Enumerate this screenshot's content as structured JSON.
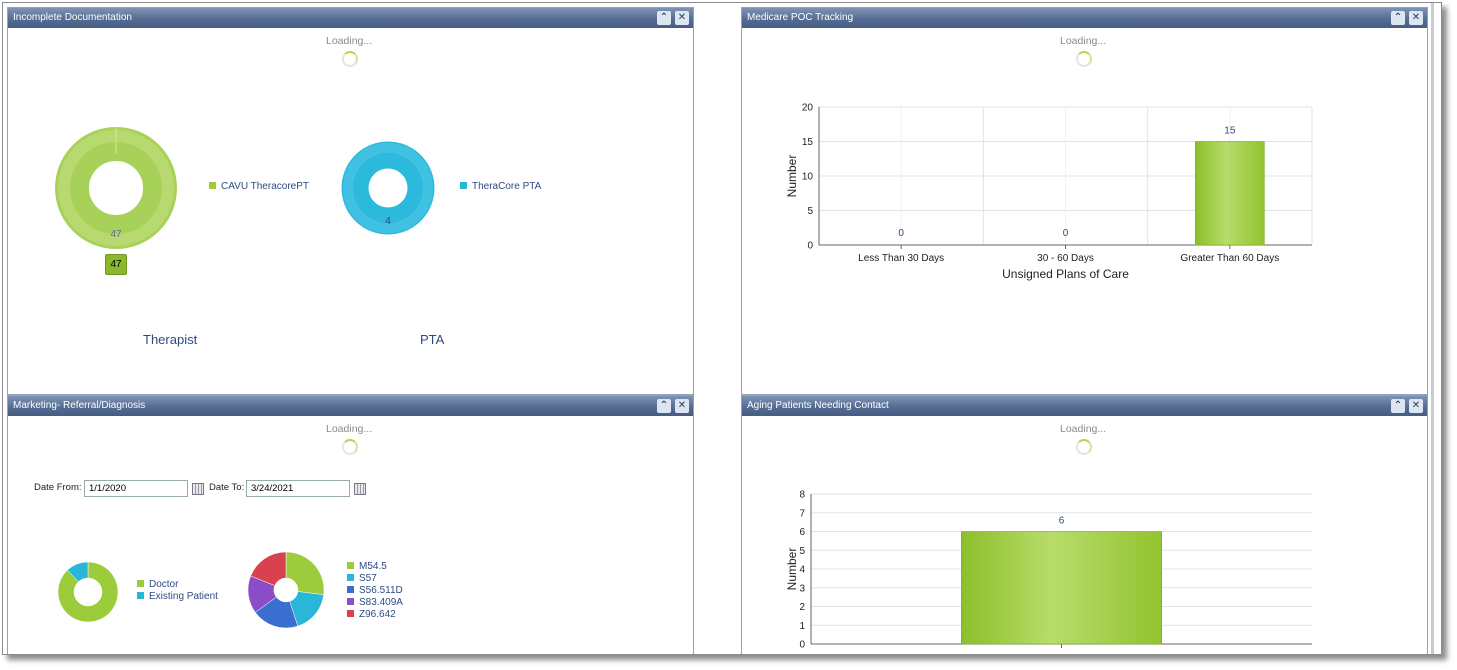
{
  "panels": {
    "incomplete": {
      "title": "Incomplete Documentation",
      "loading": "Loading...",
      "therapist": {
        "caption": "Therapist",
        "legend": "CAVU TheracorePT",
        "value": "47",
        "badge": "47",
        "color": "#9ccb3b"
      },
      "pta": {
        "caption": "PTA",
        "legend": "TheraCore PTA",
        "value": "4",
        "color": "#29b6d8"
      }
    },
    "medicare": {
      "title": "Medicare POC Tracking",
      "loading": "Loading..."
    },
    "marketing": {
      "title": "Marketing- Referral/Diagnosis",
      "loading": "Loading...",
      "date_from_label": "Date From:",
      "date_from_value": "1/1/2020",
      "date_to_label": "Date To:",
      "date_to_value": "3/24/2021",
      "referral_legend": [
        {
          "label": "Doctor",
          "color": "#9ccb3b"
        },
        {
          "label": "Existing Patient",
          "color": "#29b6d8"
        }
      ],
      "diagnosis_legend": [
        {
          "label": "M54.5",
          "color": "#9ccb3b"
        },
        {
          "label": "S57",
          "color": "#29b6d8"
        },
        {
          "label": "S56.511D",
          "color": "#3a6fd0"
        },
        {
          "label": "S83.409A",
          "color": "#8a4fc8"
        },
        {
          "label": "Z96.642",
          "color": "#d8414e"
        }
      ]
    },
    "aging": {
      "title": "Aging Patients Needing Contact",
      "loading": "Loading..."
    }
  },
  "chart_data": [
    {
      "type": "bar",
      "categories": [
        "Less Than 30 Days",
        "30 - 60 Days",
        "Greater Than 60 Days"
      ],
      "values": [
        0,
        0,
        15
      ],
      "xlabel": "Unsigned Plans of Care",
      "ylabel": "Number",
      "ylim": [
        0,
        20
      ],
      "yticks": [
        0,
        5,
        10,
        15,
        20
      ],
      "color": "#9ccb3b",
      "grid": true
    },
    {
      "type": "bar",
      "categories": [
        ""
      ],
      "values": [
        6
      ],
      "ylabel": "Number",
      "ylim": [
        0,
        8
      ],
      "yticks": [
        0,
        1,
        2,
        3,
        4,
        5,
        6,
        7,
        8
      ],
      "color": "#9ccb3b",
      "grid": true
    },
    {
      "type": "pie",
      "categories": [
        "CAVU TheracorePT"
      ],
      "values": [
        47
      ],
      "colors": [
        "#9ccb3b"
      ]
    },
    {
      "type": "pie",
      "categories": [
        "TheraCore PTA"
      ],
      "values": [
        4
      ],
      "colors": [
        "#29b6d8"
      ]
    },
    {
      "type": "pie",
      "categories": [
        "Doctor",
        "Existing Patient"
      ],
      "values": [
        88,
        12
      ],
      "colors": [
        "#9ccb3b",
        "#29b6d8"
      ]
    },
    {
      "type": "pie",
      "categories": [
        "M54.5",
        "S57",
        "S56.511D",
        "S83.409A",
        "Z96.642"
      ],
      "values": [
        27,
        18,
        20,
        16,
        19
      ],
      "colors": [
        "#9ccb3b",
        "#29b6d8",
        "#3a6fd0",
        "#8a4fc8",
        "#d8414e"
      ]
    }
  ]
}
